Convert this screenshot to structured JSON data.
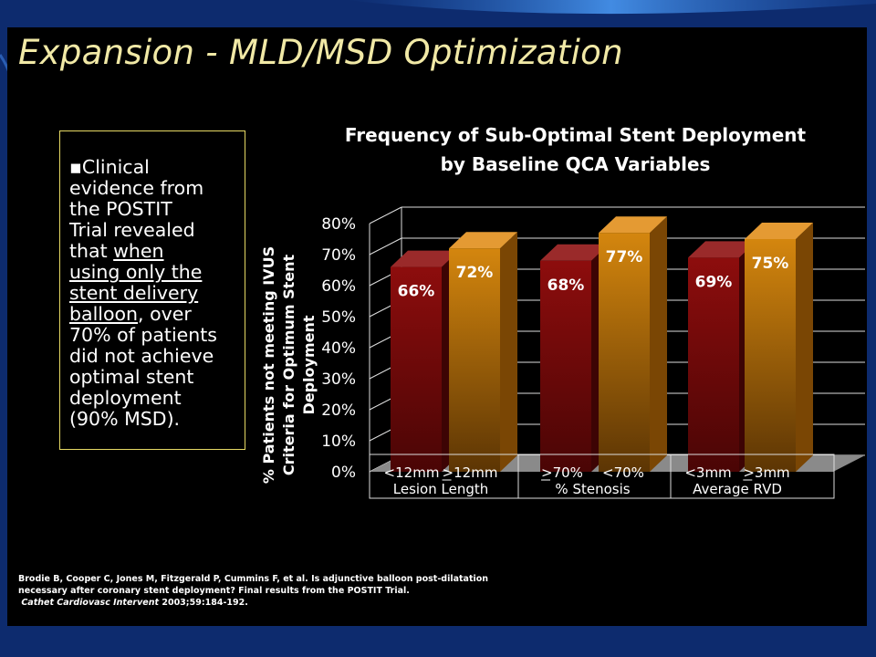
{
  "slide": {
    "title": "Expansion - MLD/MSD Optimization",
    "text_box": {
      "bullet": "▪",
      "line1": "Clinical",
      "line2": "evidence from",
      "line3": "the POSTIT",
      "line4": "Trial revealed",
      "line5": "that ",
      "line5_u": "when",
      "line6_u": "using only the",
      "line7_u": "stent delivery",
      "line8_u": "balloon",
      "line8": ", over",
      "line9": "70% of patients",
      "line10": "did not achieve",
      "line11": "optimal stent",
      "line12": "deployment",
      "line13": "(90% MSD)."
    },
    "citation": {
      "line1": "Brodie B, Cooper C, Jones M, Fitzgerald P, Cummins F, et al. Is adjunctive balloon post-dilatation",
      "line2": "necessary after coronary stent deployment? Final results from the POSTIT Trial.",
      "journal": "Cathet Cardiovasc Intervent",
      "ref": " 2003;59:184-192."
    }
  },
  "chart_data": {
    "type": "bar",
    "title_line1": "Frequency of Sub-Optimal Stent Deployment",
    "title_line2": "by Baseline QCA Variables",
    "ylabel_line1": "% Patients not meeting IVUS",
    "ylabel_line2": "Criteria for Optimum Stent",
    "ylabel_line3": "Deployment",
    "ylim": [
      0,
      80
    ],
    "yticks": [
      "0%",
      "10%",
      "20%",
      "30%",
      "40%",
      "50%",
      "60%",
      "70%",
      "80%"
    ],
    "groups": [
      {
        "label": "Lesion Length",
        "categories": [
          "<12mm",
          ">12mm"
        ],
        "values": [
          66,
          72
        ],
        "labels": [
          "66%",
          "72%"
        ]
      },
      {
        "label": "% Stenosis",
        "categories": [
          ">70%",
          "<70%"
        ],
        "values": [
          68,
          77
        ],
        "labels": [
          "68%",
          "77%"
        ]
      },
      {
        "label": "Average RVD",
        "categories": [
          "<3mm",
          ">3mm"
        ],
        "values": [
          69,
          75
        ],
        "labels": [
          "69%",
          "75%"
        ]
      }
    ],
    "underlined_symbols": [
      false,
      true,
      true,
      false,
      false,
      true
    ],
    "colors": {
      "dark_red": "#7a0b0b",
      "orange": "#c77a08"
    },
    "grid": true
  }
}
